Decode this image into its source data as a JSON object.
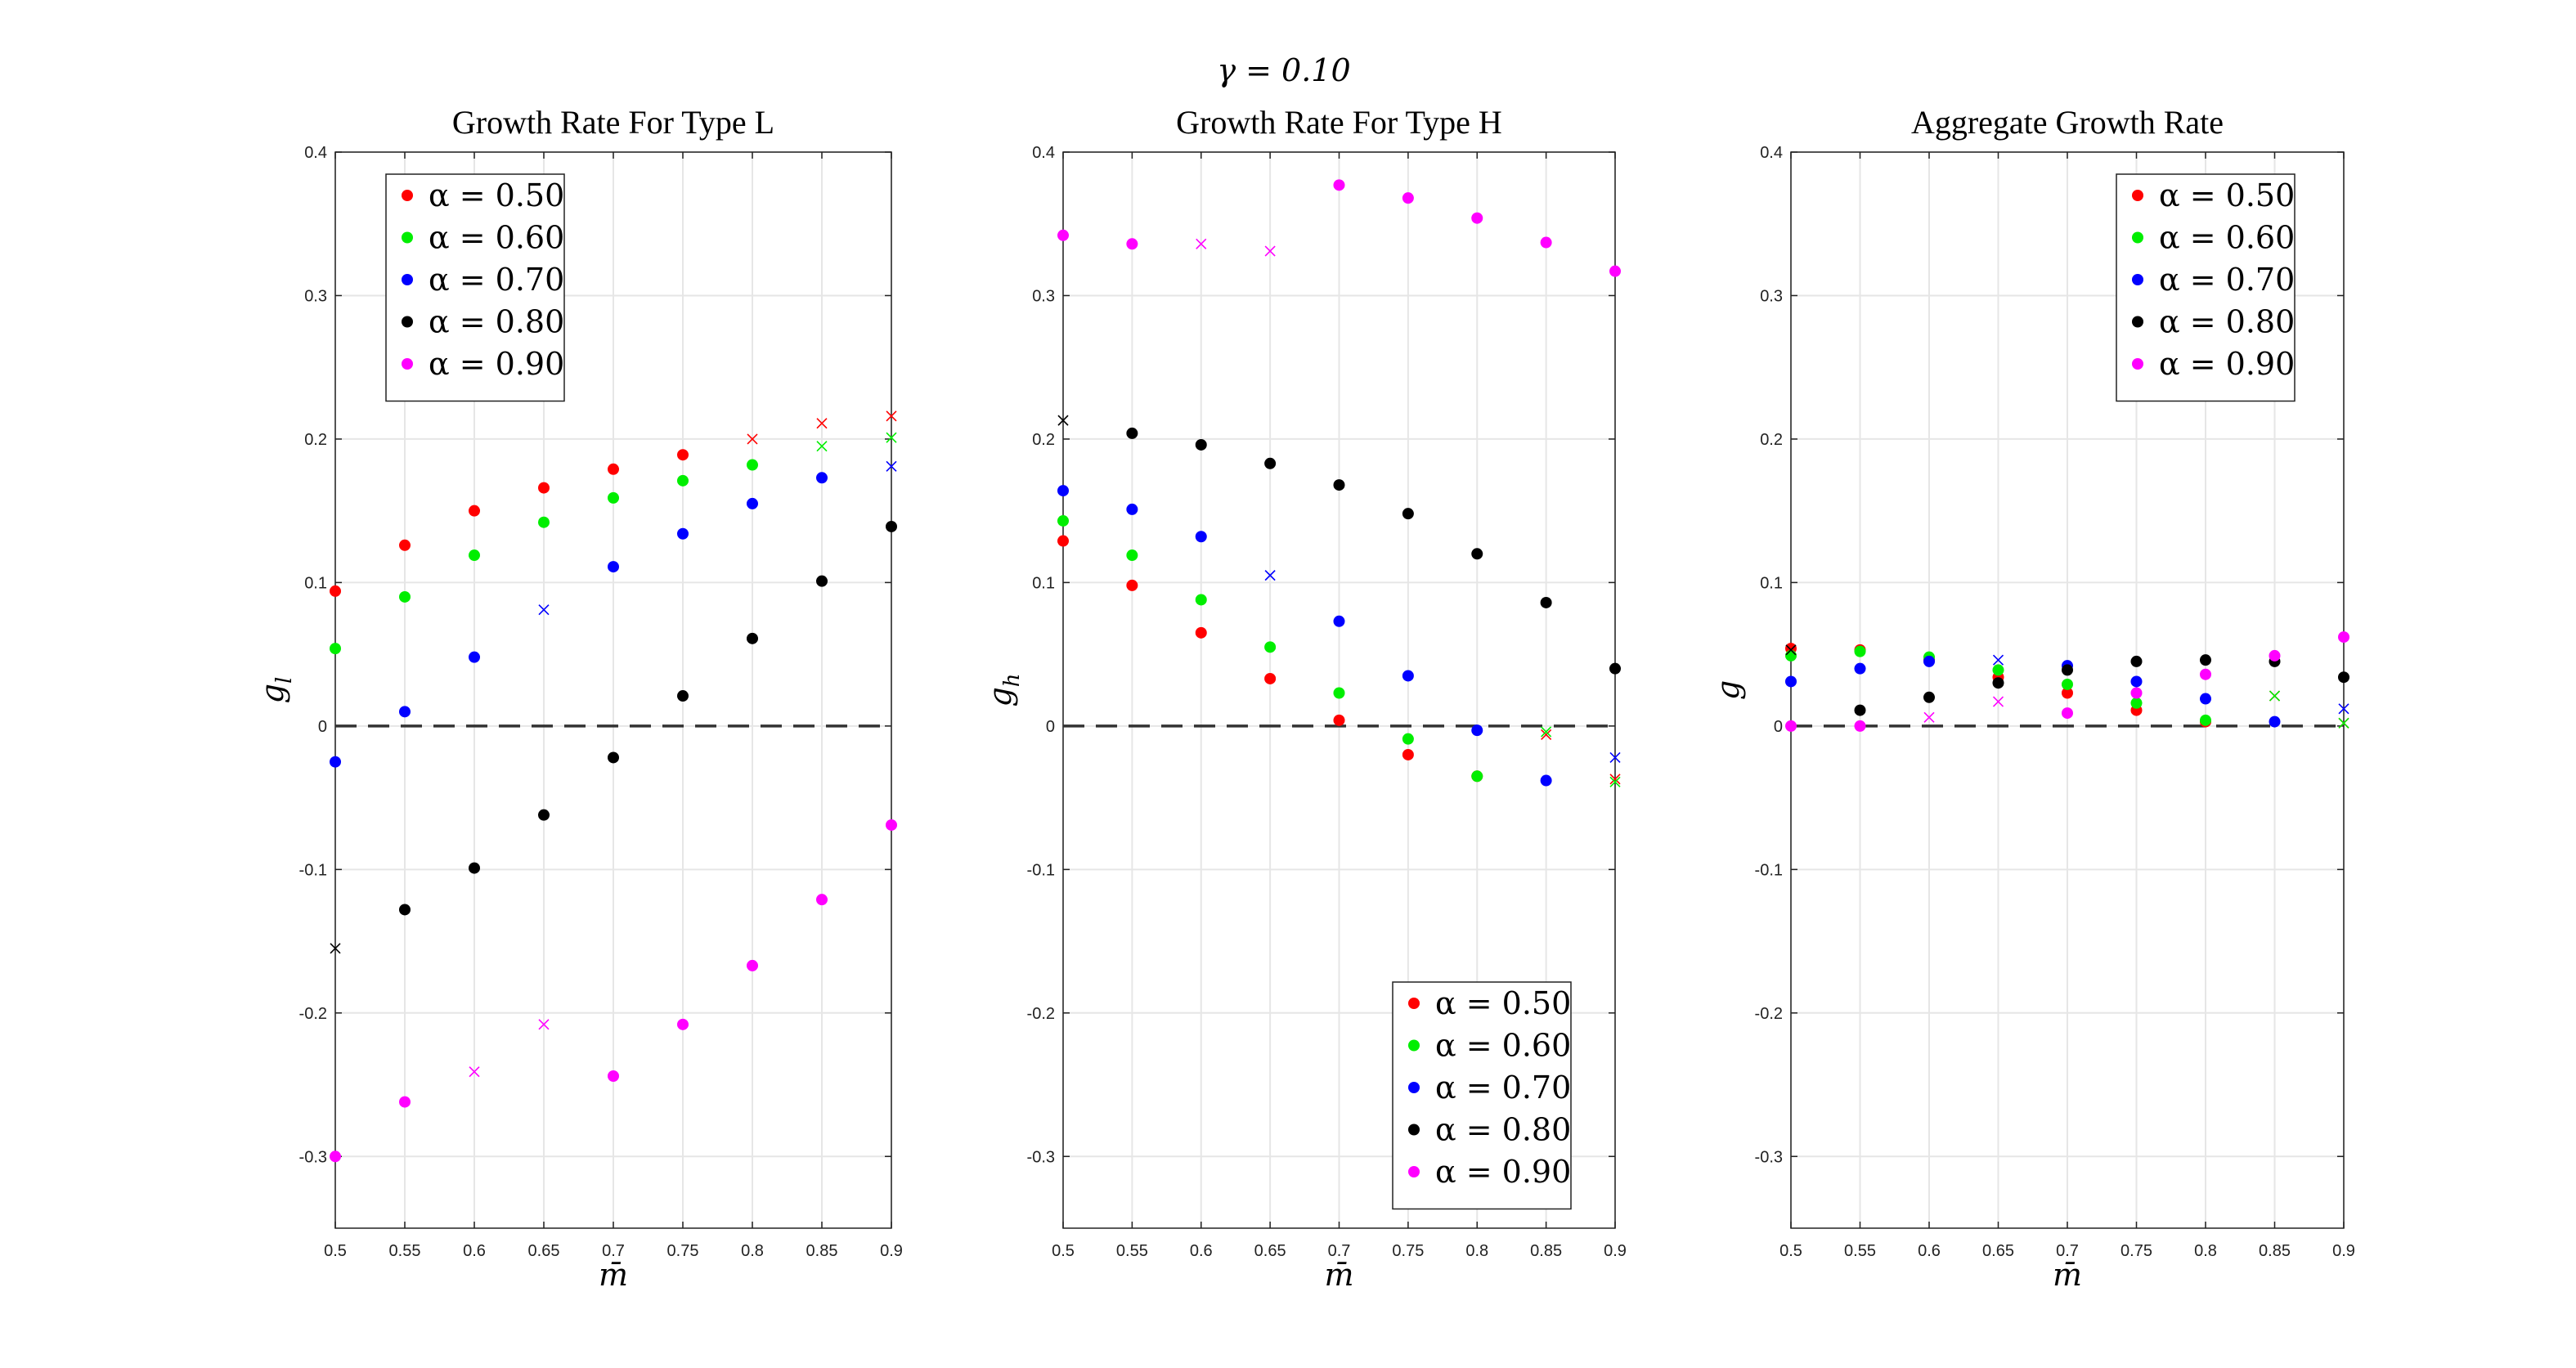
{
  "figure_title": "γ = 0.10",
  "chart_data": [
    {
      "type": "scatter",
      "title": "Growth Rate For Type L",
      "xlabel": "m̄",
      "ylabel": "g",
      "ylabel_sub": "l",
      "xlim": [
        0.5,
        0.9
      ],
      "ylim": [
        -0.35,
        0.4
      ],
      "x_ticks": [
        "0.5",
        "0.55",
        "0.6",
        "0.65",
        "0.7",
        "0.75",
        "0.8",
        "0.85",
        "0.9"
      ],
      "y_ticks": [
        "-0.3",
        "-0.2",
        "-0.1",
        "0",
        "0.1",
        "0.2",
        "0.3",
        "0.4"
      ],
      "grid": true,
      "zero_line": true,
      "legend_position": "top-left",
      "series": [
        {
          "name": "α = 0.50",
          "color": "#ff0000",
          "points": [
            [
              0.5,
              0.094,
              "dot"
            ],
            [
              0.55,
              0.126,
              "dot"
            ],
            [
              0.6,
              0.15,
              "dot"
            ],
            [
              0.65,
              0.166,
              "dot"
            ],
            [
              0.7,
              0.179,
              "dot"
            ],
            [
              0.75,
              0.189,
              "dot"
            ],
            [
              0.8,
              0.2,
              "cross"
            ],
            [
              0.85,
              0.211,
              "cross"
            ],
            [
              0.9,
              0.216,
              "cross"
            ]
          ]
        },
        {
          "name": "α = 0.60",
          "color": "#00ee00",
          "points": [
            [
              0.5,
              0.054,
              "dot"
            ],
            [
              0.55,
              0.09,
              "dot"
            ],
            [
              0.6,
              0.119,
              "dot"
            ],
            [
              0.65,
              0.142,
              "dot"
            ],
            [
              0.7,
              0.159,
              "dot"
            ],
            [
              0.75,
              0.171,
              "dot"
            ],
            [
              0.8,
              0.182,
              "dot"
            ],
            [
              0.85,
              0.195,
              "cross"
            ],
            [
              0.9,
              0.201,
              "cross"
            ]
          ]
        },
        {
          "name": "α = 0.70",
          "color": "#0000ff",
          "points": [
            [
              0.5,
              -0.025,
              "dot"
            ],
            [
              0.55,
              0.01,
              "dot"
            ],
            [
              0.6,
              0.048,
              "dot"
            ],
            [
              0.65,
              0.081,
              "cross"
            ],
            [
              0.7,
              0.111,
              "dot"
            ],
            [
              0.75,
              0.134,
              "dot"
            ],
            [
              0.8,
              0.155,
              "dot"
            ],
            [
              0.85,
              0.173,
              "dot"
            ],
            [
              0.9,
              0.181,
              "cross"
            ]
          ]
        },
        {
          "name": "α = 0.80",
          "color": "#000000",
          "points": [
            [
              0.5,
              -0.155,
              "cross"
            ],
            [
              0.55,
              -0.128,
              "dot"
            ],
            [
              0.6,
              -0.099,
              "dot"
            ],
            [
              0.65,
              -0.062,
              "dot"
            ],
            [
              0.7,
              -0.022,
              "dot"
            ],
            [
              0.75,
              0.021,
              "dot"
            ],
            [
              0.8,
              0.061,
              "dot"
            ],
            [
              0.85,
              0.101,
              "dot"
            ],
            [
              0.9,
              0.139,
              "dot"
            ]
          ]
        },
        {
          "name": "α = 0.90",
          "color": "#ff00ff",
          "points": [
            [
              0.5,
              -0.3,
              "dot"
            ],
            [
              0.55,
              -0.262,
              "dot"
            ],
            [
              0.6,
              -0.241,
              "cross"
            ],
            [
              0.65,
              -0.208,
              "cross"
            ],
            [
              0.7,
              -0.244,
              "dot"
            ],
            [
              0.75,
              -0.208,
              "dot"
            ],
            [
              0.8,
              -0.167,
              "dot"
            ],
            [
              0.85,
              -0.121,
              "dot"
            ],
            [
              0.9,
              -0.069,
              "dot"
            ]
          ]
        }
      ]
    },
    {
      "type": "scatter",
      "title": "Growth Rate For Type H",
      "xlabel": "m̄",
      "ylabel": "g",
      "ylabel_sub": "h",
      "xlim": [
        0.5,
        0.9
      ],
      "ylim": [
        -0.35,
        0.4
      ],
      "x_ticks": [
        "0.5",
        "0.55",
        "0.6",
        "0.65",
        "0.7",
        "0.75",
        "0.8",
        "0.85",
        "0.9"
      ],
      "y_ticks": [
        "-0.3",
        "-0.2",
        "-0.1",
        "0",
        "0.1",
        "0.2",
        "0.3",
        "0.4"
      ],
      "grid": true,
      "zero_line": true,
      "legend_position": "bottom-right",
      "series": [
        {
          "name": "α = 0.50",
          "color": "#ff0000",
          "points": [
            [
              0.5,
              0.129,
              "dot"
            ],
            [
              0.55,
              0.098,
              "dot"
            ],
            [
              0.6,
              0.065,
              "dot"
            ],
            [
              0.65,
              0.033,
              "dot"
            ],
            [
              0.7,
              0.004,
              "dot"
            ],
            [
              0.75,
              -0.02,
              "dot"
            ],
            [
              0.8,
              -0.035,
              "dot"
            ],
            [
              0.85,
              -0.006,
              "cross"
            ],
            [
              0.9,
              -0.037,
              "cross"
            ]
          ]
        },
        {
          "name": "α = 0.60",
          "color": "#00ee00",
          "points": [
            [
              0.5,
              0.143,
              "dot"
            ],
            [
              0.55,
              0.119,
              "dot"
            ],
            [
              0.6,
              0.088,
              "dot"
            ],
            [
              0.65,
              0.055,
              "dot"
            ],
            [
              0.7,
              0.023,
              "dot"
            ],
            [
              0.75,
              -0.009,
              "dot"
            ],
            [
              0.8,
              -0.035,
              "dot"
            ],
            [
              0.85,
              -0.004,
              "cross"
            ],
            [
              0.9,
              -0.039,
              "cross"
            ]
          ]
        },
        {
          "name": "α = 0.70",
          "color": "#0000ff",
          "points": [
            [
              0.5,
              0.164,
              "dot"
            ],
            [
              0.55,
              0.151,
              "dot"
            ],
            [
              0.6,
              0.132,
              "dot"
            ],
            [
              0.65,
              0.105,
              "cross"
            ],
            [
              0.7,
              0.073,
              "dot"
            ],
            [
              0.75,
              0.035,
              "dot"
            ],
            [
              0.8,
              -0.003,
              "dot"
            ],
            [
              0.85,
              -0.038,
              "dot"
            ],
            [
              0.9,
              -0.022,
              "cross"
            ]
          ]
        },
        {
          "name": "α = 0.80",
          "color": "#000000",
          "points": [
            [
              0.5,
              0.213,
              "cross"
            ],
            [
              0.55,
              0.204,
              "dot"
            ],
            [
              0.6,
              0.196,
              "dot"
            ],
            [
              0.65,
              0.183,
              "dot"
            ],
            [
              0.7,
              0.168,
              "dot"
            ],
            [
              0.75,
              0.148,
              "dot"
            ],
            [
              0.8,
              0.12,
              "dot"
            ],
            [
              0.85,
              0.086,
              "dot"
            ],
            [
              0.9,
              0.04,
              "dot"
            ]
          ]
        },
        {
          "name": "α = 0.90",
          "color": "#ff00ff",
          "points": [
            [
              0.5,
              0.342,
              "dot"
            ],
            [
              0.55,
              0.336,
              "dot"
            ],
            [
              0.6,
              0.336,
              "cross"
            ],
            [
              0.65,
              0.331,
              "cross"
            ],
            [
              0.7,
              0.377,
              "dot"
            ],
            [
              0.75,
              0.368,
              "dot"
            ],
            [
              0.8,
              0.354,
              "dot"
            ],
            [
              0.85,
              0.337,
              "dot"
            ],
            [
              0.9,
              0.317,
              "dot"
            ]
          ]
        }
      ]
    },
    {
      "type": "scatter",
      "title": "Aggregate Growth Rate",
      "xlabel": "m̄",
      "ylabel": "g",
      "ylabel_sub": "",
      "xlim": [
        0.5,
        0.9
      ],
      "ylim": [
        -0.35,
        0.4
      ],
      "x_ticks": [
        "0.5",
        "0.55",
        "0.6",
        "0.65",
        "0.7",
        "0.75",
        "0.8",
        "0.85",
        "0.9"
      ],
      "y_ticks": [
        "-0.3",
        "-0.2",
        "-0.1",
        "0",
        "0.1",
        "0.2",
        "0.3",
        "0.4"
      ],
      "grid": true,
      "zero_line": true,
      "legend_position": "top-right",
      "series": [
        {
          "name": "α = 0.50",
          "color": "#ff0000",
          "points": [
            [
              0.5,
              0.054,
              "dot"
            ],
            [
              0.55,
              0.053,
              "dot"
            ],
            [
              0.6,
              0.046,
              "dot"
            ],
            [
              0.65,
              0.034,
              "dot"
            ],
            [
              0.7,
              0.023,
              "dot"
            ],
            [
              0.75,
              0.011,
              "dot"
            ],
            [
              0.8,
              0.003,
              "dot"
            ],
            [
              0.85,
              0.021,
              "cross"
            ],
            [
              0.9,
              0.002,
              "cross"
            ]
          ]
        },
        {
          "name": "α = 0.60",
          "color": "#00ee00",
          "points": [
            [
              0.5,
              0.049,
              "dot"
            ],
            [
              0.55,
              0.052,
              "dot"
            ],
            [
              0.6,
              0.048,
              "dot"
            ],
            [
              0.65,
              0.039,
              "dot"
            ],
            [
              0.7,
              0.029,
              "dot"
            ],
            [
              0.75,
              0.016,
              "dot"
            ],
            [
              0.8,
              0.004,
              "dot"
            ],
            [
              0.85,
              0.021,
              "cross"
            ],
            [
              0.9,
              0.002,
              "cross"
            ]
          ]
        },
        {
          "name": "α = 0.70",
          "color": "#0000ff",
          "points": [
            [
              0.5,
              0.031,
              "dot"
            ],
            [
              0.55,
              0.04,
              "dot"
            ],
            [
              0.6,
              0.045,
              "dot"
            ],
            [
              0.65,
              0.046,
              "cross"
            ],
            [
              0.7,
              0.042,
              "dot"
            ],
            [
              0.75,
              0.031,
              "dot"
            ],
            [
              0.8,
              0.019,
              "dot"
            ],
            [
              0.85,
              0.003,
              "dot"
            ],
            [
              0.9,
              0.012,
              "cross"
            ]
          ]
        },
        {
          "name": "α = 0.80",
          "color": "#000000",
          "points": [
            [
              0.5,
              0.053,
              "cross"
            ],
            [
              0.55,
              0.011,
              "dot"
            ],
            [
              0.6,
              0.02,
              "dot"
            ],
            [
              0.65,
              0.03,
              "dot"
            ],
            [
              0.7,
              0.039,
              "dot"
            ],
            [
              0.75,
              0.045,
              "dot"
            ],
            [
              0.8,
              0.046,
              "dot"
            ],
            [
              0.85,
              0.045,
              "dot"
            ],
            [
              0.9,
              0.034,
              "dot"
            ]
          ]
        },
        {
          "name": "α = 0.90",
          "color": "#ff00ff",
          "points": [
            [
              0.5,
              0.0,
              "dot"
            ],
            [
              0.55,
              0.0,
              "dot"
            ],
            [
              0.6,
              0.006,
              "cross"
            ],
            [
              0.65,
              0.017,
              "cross"
            ],
            [
              0.7,
              0.009,
              "dot"
            ],
            [
              0.75,
              0.023,
              "dot"
            ],
            [
              0.8,
              0.036,
              "dot"
            ],
            [
              0.85,
              0.049,
              "dot"
            ],
            [
              0.9,
              0.062,
              "dot"
            ]
          ]
        }
      ]
    }
  ]
}
